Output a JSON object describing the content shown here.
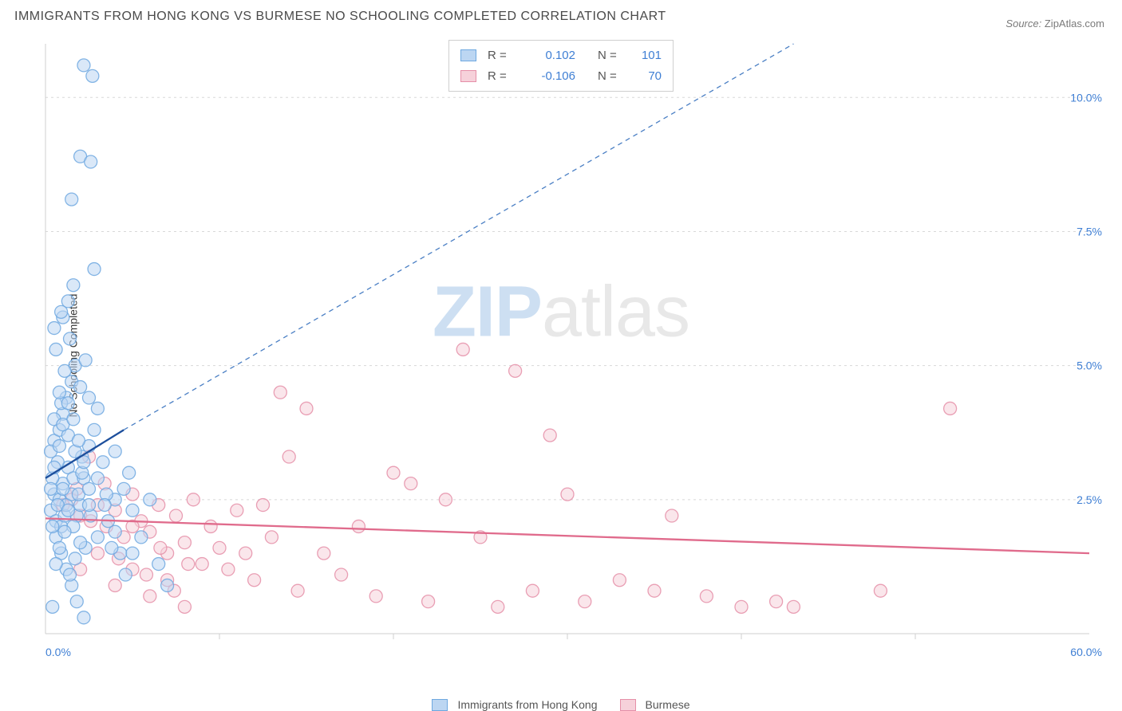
{
  "title": "IMMIGRANTS FROM HONG KONG VS BURMESE NO SCHOOLING COMPLETED CORRELATION CHART",
  "source": {
    "label": "Source:",
    "value": "ZipAtlas.com"
  },
  "y_axis_label": "No Schooling Completed",
  "watermark": {
    "prefix": "ZIP",
    "suffix": "atlas"
  },
  "chart": {
    "type": "scatter",
    "background_color": "#ffffff",
    "grid_color": "#d8d8d8",
    "axis_line_color": "#cfcfcf",
    "xlim": [
      0,
      60
    ],
    "ylim": [
      0,
      11
    ],
    "x_ticks": [
      {
        "v": 0,
        "label": "0.0%"
      },
      {
        "v": 60,
        "label": "60.0%"
      }
    ],
    "x_minor_ticks": [
      10,
      20,
      30,
      40,
      50
    ],
    "y_ticks": [
      {
        "v": 2.5,
        "label": "2.5%"
      },
      {
        "v": 5.0,
        "label": "5.0%"
      },
      {
        "v": 7.5,
        "label": "7.5%"
      },
      {
        "v": 10.0,
        "label": "10.0%"
      }
    ],
    "marker_radius": 8,
    "marker_opacity": 0.55,
    "marker_stroke_width": 1.3
  },
  "series": [
    {
      "id": "hk",
      "name": "Immigrants from Hong Kong",
      "fill": "#bcd6f2",
      "stroke": "#6ea8e0",
      "swatch_fill": "#bcd6f2",
      "swatch_stroke": "#6ea8e0",
      "stats": {
        "R": "0.102",
        "N": "101"
      },
      "regression": {
        "solid": {
          "x1": 0,
          "y1": 2.9,
          "x2": 4.5,
          "y2": 3.8,
          "color": "#1d4f9c",
          "width": 2.3
        },
        "dashed": {
          "x1": 4.5,
          "y1": 3.8,
          "x2": 43,
          "y2": 11.0,
          "color": "#4a7fc4",
          "width": 1.3,
          "dash": "6 5"
        }
      },
      "points": [
        [
          0.3,
          2.3
        ],
        [
          0.5,
          2.6
        ],
        [
          0.6,
          2.1
        ],
        [
          0.8,
          2.5
        ],
        [
          0.9,
          2.0
        ],
        [
          1.0,
          2.8
        ],
        [
          1.1,
          2.2
        ],
        [
          1.2,
          2.4
        ],
        [
          1.3,
          3.1
        ],
        [
          0.4,
          2.9
        ],
        [
          0.7,
          3.2
        ],
        [
          1.5,
          2.6
        ],
        [
          1.6,
          2.9
        ],
        [
          1.8,
          2.2
        ],
        [
          2.0,
          2.4
        ],
        [
          2.1,
          3.3
        ],
        [
          2.3,
          1.6
        ],
        [
          2.5,
          3.5
        ],
        [
          0.5,
          3.6
        ],
        [
          0.8,
          3.8
        ],
        [
          1.0,
          4.1
        ],
        [
          1.2,
          4.4
        ],
        [
          1.5,
          4.7
        ],
        [
          1.7,
          5.0
        ],
        [
          0.6,
          5.3
        ],
        [
          1.4,
          5.5
        ],
        [
          1.0,
          5.9
        ],
        [
          1.3,
          6.2
        ],
        [
          1.6,
          6.5
        ],
        [
          0.9,
          4.3
        ],
        [
          2.0,
          4.6
        ],
        [
          2.3,
          5.1
        ],
        [
          2.8,
          3.8
        ],
        [
          3.0,
          2.9
        ],
        [
          3.3,
          3.2
        ],
        [
          3.6,
          2.1
        ],
        [
          4.0,
          2.5
        ],
        [
          4.3,
          1.5
        ],
        [
          4.6,
          1.1
        ],
        [
          5.0,
          2.3
        ],
        [
          5.5,
          1.8
        ],
        [
          6.0,
          2.5
        ],
        [
          6.5,
          1.3
        ],
        [
          7.0,
          0.9
        ],
        [
          0.4,
          0.5
        ],
        [
          2.2,
          10.6
        ],
        [
          2.7,
          10.4
        ],
        [
          2.0,
          8.9
        ],
        [
          2.6,
          8.8
        ],
        [
          1.5,
          8.1
        ],
        [
          2.8,
          6.8
        ],
        [
          4.0,
          3.4
        ],
        [
          4.8,
          3.0
        ],
        [
          0.6,
          1.8
        ],
        [
          0.9,
          1.5
        ],
        [
          1.2,
          1.2
        ],
        [
          1.5,
          0.9
        ],
        [
          1.8,
          0.6
        ],
        [
          2.2,
          0.3
        ],
        [
          0.3,
          3.4
        ],
        [
          0.5,
          4.0
        ],
        [
          0.8,
          4.5
        ],
        [
          1.1,
          4.9
        ],
        [
          2.5,
          4.4
        ],
        [
          3.0,
          4.2
        ],
        [
          3.5,
          2.6
        ],
        [
          4.0,
          1.9
        ],
        [
          4.5,
          2.7
        ],
        [
          5.0,
          1.5
        ],
        [
          0.4,
          2.0
        ],
        [
          0.7,
          2.4
        ],
        [
          1.0,
          2.7
        ],
        [
          1.3,
          2.3
        ],
        [
          1.6,
          2.0
        ],
        [
          1.9,
          2.6
        ],
        [
          2.2,
          2.9
        ],
        [
          2.6,
          2.2
        ],
        [
          3.0,
          1.8
        ],
        [
          3.4,
          2.4
        ],
        [
          3.8,
          1.6
        ],
        [
          0.5,
          5.7
        ],
        [
          0.9,
          6.0
        ],
        [
          1.3,
          3.7
        ],
        [
          1.7,
          3.4
        ],
        [
          2.1,
          3.0
        ],
        [
          2.5,
          2.7
        ],
        [
          0.6,
          1.3
        ],
        [
          0.8,
          1.6
        ],
        [
          1.1,
          1.9
        ],
        [
          1.4,
          1.1
        ],
        [
          1.7,
          1.4
        ],
        [
          2.0,
          1.7
        ],
        [
          0.3,
          2.7
        ],
        [
          0.5,
          3.1
        ],
        [
          0.8,
          3.5
        ],
        [
          1.0,
          3.9
        ],
        [
          1.3,
          4.3
        ],
        [
          1.6,
          4.0
        ],
        [
          1.9,
          3.6
        ],
        [
          2.2,
          3.2
        ],
        [
          2.5,
          2.4
        ]
      ]
    },
    {
      "id": "bm",
      "name": "Burmese",
      "fill": "#f6d1da",
      "stroke": "#e58fa8",
      "swatch_fill": "#f6d1da",
      "swatch_stroke": "#e58fa8",
      "stats": {
        "R": "-0.106",
        "N": "70"
      },
      "regression": {
        "solid": {
          "x1": 0,
          "y1": 2.15,
          "x2": 60,
          "y2": 1.5,
          "color": "#e06b8c",
          "width": 2.3
        }
      },
      "points": [
        [
          1.5,
          2.5
        ],
        [
          2.0,
          2.2
        ],
        [
          2.5,
          3.3
        ],
        [
          3.0,
          2.4
        ],
        [
          3.5,
          2.0
        ],
        [
          4.0,
          2.3
        ],
        [
          4.5,
          1.8
        ],
        [
          5.0,
          2.6
        ],
        [
          5.5,
          2.1
        ],
        [
          6.0,
          1.9
        ],
        [
          6.5,
          2.4
        ],
        [
          7.0,
          1.5
        ],
        [
          7.5,
          2.2
        ],
        [
          8.0,
          1.7
        ],
        [
          8.5,
          2.5
        ],
        [
          9.0,
          1.3
        ],
        [
          9.5,
          2.0
        ],
        [
          10.0,
          1.6
        ],
        [
          10.5,
          1.2
        ],
        [
          11.0,
          2.3
        ],
        [
          11.5,
          1.5
        ],
        [
          12.0,
          1.0
        ],
        [
          12.5,
          2.4
        ],
        [
          13.0,
          1.8
        ],
        [
          13.5,
          4.5
        ],
        [
          14.0,
          3.3
        ],
        [
          14.5,
          0.8
        ],
        [
          15.0,
          4.2
        ],
        [
          16.0,
          1.5
        ],
        [
          17.0,
          1.1
        ],
        [
          18.0,
          2.0
        ],
        [
          19.0,
          0.7
        ],
        [
          20.0,
          3.0
        ],
        [
          21.0,
          2.8
        ],
        [
          22.0,
          0.6
        ],
        [
          23.0,
          2.5
        ],
        [
          24.0,
          5.3
        ],
        [
          25.0,
          1.8
        ],
        [
          26.0,
          0.5
        ],
        [
          27.0,
          4.9
        ],
        [
          28.0,
          0.8
        ],
        [
          29.0,
          3.7
        ],
        [
          30.0,
          2.6
        ],
        [
          31.0,
          0.6
        ],
        [
          33.0,
          1.0
        ],
        [
          35.0,
          0.8
        ],
        [
          36.0,
          2.2
        ],
        [
          38.0,
          0.7
        ],
        [
          40.0,
          0.5
        ],
        [
          42.0,
          0.6
        ],
        [
          43.0,
          0.5
        ],
        [
          48.0,
          0.8
        ],
        [
          52.0,
          4.2
        ],
        [
          2.0,
          1.2
        ],
        [
          3.0,
          1.5
        ],
        [
          4.0,
          0.9
        ],
        [
          5.0,
          1.2
        ],
        [
          6.0,
          0.7
        ],
        [
          7.0,
          1.0
        ],
        [
          8.0,
          0.5
        ],
        [
          1.0,
          2.4
        ],
        [
          1.8,
          2.7
        ],
        [
          2.6,
          2.1
        ],
        [
          3.4,
          2.8
        ],
        [
          4.2,
          1.4
        ],
        [
          5.0,
          2.0
        ],
        [
          5.8,
          1.1
        ],
        [
          6.6,
          1.6
        ],
        [
          7.4,
          0.8
        ],
        [
          8.2,
          1.3
        ]
      ]
    }
  ],
  "stats_labels": {
    "R": "R =",
    "N": "N ="
  },
  "bottom_legend": [
    {
      "series": "hk",
      "label": "Immigrants from Hong Kong"
    },
    {
      "series": "bm",
      "label": "Burmese"
    }
  ]
}
